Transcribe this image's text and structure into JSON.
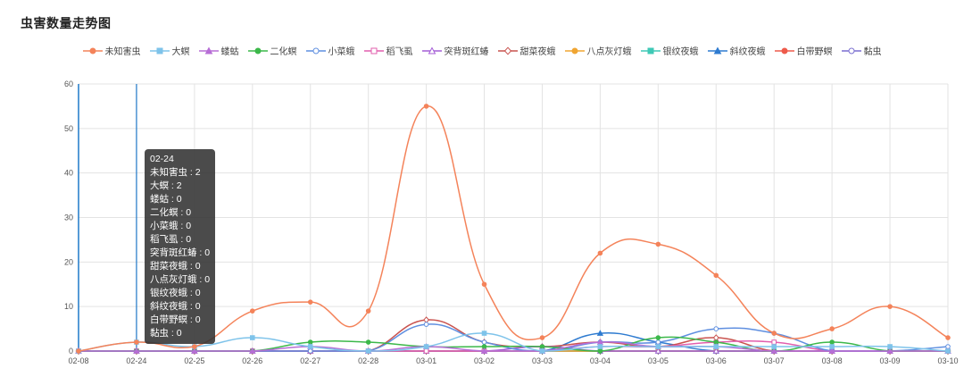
{
  "title": "虫害数量走势图",
  "chart_data": {
    "type": "line",
    "categories": [
      "02-08",
      "02-24",
      "02-25",
      "02-26",
      "02-27",
      "02-28",
      "03-01",
      "03-02",
      "03-03",
      "03-04",
      "03-05",
      "03-06",
      "03-07",
      "03-08",
      "03-09",
      "03-10"
    ],
    "ylim": [
      0,
      60
    ],
    "yticks": [
      0,
      10,
      20,
      30,
      40,
      50,
      60
    ],
    "grid": true,
    "legend_placement": "top-center",
    "smooth": true,
    "series": [
      {
        "name": "未知害虫",
        "color": "#f4835a",
        "marker": "circle",
        "values": [
          0,
          2,
          1,
          9,
          11,
          9,
          55,
          15,
          3,
          22,
          24,
          17,
          4,
          5,
          10,
          3
        ]
      },
      {
        "name": "大螟",
        "color": "#7ec3ea",
        "marker": "rect",
        "values": [
          0,
          2,
          1,
          3,
          1,
          0,
          1,
          4,
          0,
          1,
          1,
          1,
          1,
          1,
          1,
          0
        ]
      },
      {
        "name": "蝼蛄",
        "color": "#b76ed6",
        "marker": "triangle",
        "values": [
          0,
          0,
          0,
          0,
          1,
          0,
          1,
          0,
          0,
          2,
          1,
          1,
          0,
          0,
          0,
          0
        ]
      },
      {
        "name": "二化螟",
        "color": "#3cb84a",
        "marker": "circle",
        "values": [
          0,
          0,
          0,
          0,
          2,
          2,
          1,
          1,
          1,
          0,
          3,
          2,
          0,
          2,
          0,
          0
        ]
      },
      {
        "name": "小菜蛾",
        "color": "#5f8fe0",
        "marker": "circle-hollow",
        "values": [
          0,
          0,
          0,
          0,
          0,
          0,
          6,
          2,
          0,
          2,
          2,
          5,
          4,
          0,
          0,
          1
        ]
      },
      {
        "name": "稻飞虱",
        "color": "#e25fae",
        "marker": "rect-hollow",
        "values": [
          0,
          0,
          0,
          0,
          0,
          0,
          0,
          0,
          0,
          1,
          1,
          2,
          2,
          0,
          0,
          0
        ]
      },
      {
        "name": "突背斑红蝽",
        "color": "#a45ed6",
        "marker": "triangle-hollow",
        "values": [
          0,
          0,
          0,
          0,
          0,
          0,
          0,
          0,
          1,
          0,
          0,
          0,
          0,
          0,
          0,
          0
        ]
      },
      {
        "name": "甜菜夜蛾",
        "color": "#c9534f",
        "marker": "diamond-hollow",
        "values": [
          0,
          0,
          0,
          0,
          0,
          0,
          7,
          2,
          1,
          2,
          1,
          3,
          0,
          0,
          0,
          0
        ]
      },
      {
        "name": "八点灰灯蛾",
        "color": "#f0a532",
        "marker": "circle",
        "values": [
          0,
          0,
          0,
          0,
          0,
          0,
          0,
          0,
          0,
          0,
          0,
          0,
          0,
          0,
          0,
          0
        ]
      },
      {
        "name": "银纹夜蛾",
        "color": "#3ec9b6",
        "marker": "rect",
        "values": [
          0,
          0,
          0,
          0,
          0,
          0,
          0,
          0,
          0,
          0,
          0,
          0,
          0,
          0,
          0,
          0
        ]
      },
      {
        "name": "斜纹夜蛾",
        "color": "#2e7bd0",
        "marker": "triangle",
        "values": [
          0,
          0,
          0,
          0,
          0,
          0,
          0,
          0,
          0,
          4,
          2,
          0,
          0,
          0,
          0,
          0
        ]
      },
      {
        "name": "白带野螟",
        "color": "#ee5b4b",
        "marker": "circle",
        "values": [
          0,
          0,
          0,
          0,
          0,
          0,
          0,
          0,
          0,
          0,
          0,
          0,
          0,
          0,
          0,
          0
        ]
      },
      {
        "name": "黏虫",
        "color": "#7a6fd0",
        "marker": "circle-hollow",
        "values": [
          0,
          0,
          0,
          0,
          0,
          0,
          0,
          0,
          0,
          0,
          0,
          0,
          0,
          0,
          0,
          0
        ]
      }
    ],
    "active_category_index": 1
  },
  "tooltip": {
    "header": "02-24",
    "rows": [
      "未知害虫 : 2",
      "大螟 : 2",
      "蝼蛄 : 0",
      "二化螟 : 0",
      "小菜蛾 : 0",
      "稻飞虱 : 0",
      "突背斑红蝽 : 0",
      "甜菜夜蛾 : 0",
      "八点灰灯蛾 : 0",
      "银纹夜蛾 : 0",
      "斜纹夜蛾 : 0",
      "白带野螟 : 0",
      "黏虫 : 0"
    ]
  }
}
